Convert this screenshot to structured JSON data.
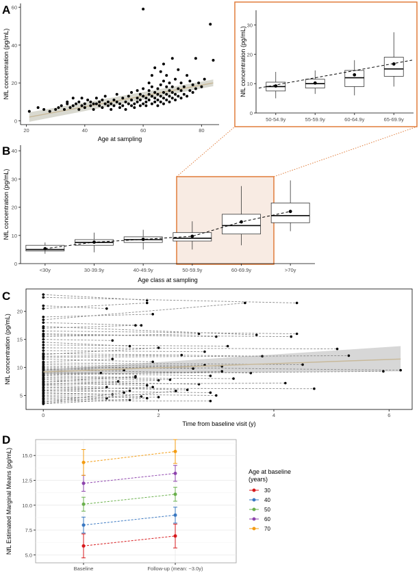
{
  "chart_data": [
    {
      "id": "A",
      "panel_label": "A",
      "type": "scatter",
      "xlabel": "Age at sampling",
      "ylabel": "NfL concentration (pg/mL)",
      "xlim": [
        18,
        86
      ],
      "ylim": [
        -2,
        62
      ],
      "xticks": [
        20,
        40,
        60,
        80
      ],
      "yticks": [
        0,
        20,
        40,
        60
      ],
      "grid": false,
      "points": [
        [
          21,
          5
        ],
        [
          24,
          7
        ],
        [
          26,
          6
        ],
        [
          28,
          5
        ],
        [
          30,
          6
        ],
        [
          31,
          7
        ],
        [
          32,
          8
        ],
        [
          33,
          6
        ],
        [
          34,
          10
        ],
        [
          34,
          9
        ],
        [
          35,
          7
        ],
        [
          36,
          8
        ],
        [
          36,
          12
        ],
        [
          37,
          9
        ],
        [
          38,
          10
        ],
        [
          38,
          6
        ],
        [
          39,
          8
        ],
        [
          39,
          12
        ],
        [
          40,
          7
        ],
        [
          40,
          9
        ],
        [
          41,
          11
        ],
        [
          42,
          8
        ],
        [
          42,
          10
        ],
        [
          43,
          6
        ],
        [
          43,
          9
        ],
        [
          44,
          9
        ],
        [
          44,
          12
        ],
        [
          45,
          8
        ],
        [
          45,
          10
        ],
        [
          46,
          7
        ],
        [
          46,
          11
        ],
        [
          47,
          9
        ],
        [
          47,
          13
        ],
        [
          48,
          8
        ],
        [
          48,
          10
        ],
        [
          49,
          6
        ],
        [
          49,
          9
        ],
        [
          50,
          11
        ],
        [
          50,
          8
        ],
        [
          51,
          10
        ],
        [
          51,
          14
        ],
        [
          52,
          7
        ],
        [
          52,
          9
        ],
        [
          53,
          12
        ],
        [
          53,
          8
        ],
        [
          54,
          10
        ],
        [
          54,
          6
        ],
        [
          55,
          9
        ],
        [
          55,
          13
        ],
        [
          56,
          8
        ],
        [
          56,
          11
        ],
        [
          56,
          15
        ],
        [
          57,
          9
        ],
        [
          57,
          7
        ],
        [
          58,
          10
        ],
        [
          58,
          12
        ],
        [
          58,
          16
        ],
        [
          59,
          8
        ],
        [
          59,
          11
        ],
        [
          59,
          14
        ],
        [
          60,
          9
        ],
        [
          60,
          13
        ],
        [
          60,
          17
        ],
        [
          60,
          59
        ],
        [
          61,
          10
        ],
        [
          61,
          12
        ],
        [
          61,
          8
        ],
        [
          62,
          14
        ],
        [
          62,
          11
        ],
        [
          62,
          16
        ],
        [
          62,
          20
        ],
        [
          63,
          9
        ],
        [
          63,
          13
        ],
        [
          63,
          18
        ],
        [
          63,
          24
        ],
        [
          64,
          10
        ],
        [
          64,
          15
        ],
        [
          64,
          12
        ],
        [
          64,
          28
        ],
        [
          65,
          8
        ],
        [
          65,
          11
        ],
        [
          65,
          14
        ],
        [
          65,
          17
        ],
        [
          66,
          13
        ],
        [
          66,
          19
        ],
        [
          66,
          10
        ],
        [
          66,
          26
        ],
        [
          67,
          9
        ],
        [
          67,
          12
        ],
        [
          67,
          15
        ],
        [
          67,
          21
        ],
        [
          67,
          30
        ],
        [
          68,
          11
        ],
        [
          68,
          14
        ],
        [
          68,
          18
        ],
        [
          68,
          24
        ],
        [
          69,
          10
        ],
        [
          69,
          13
        ],
        [
          69,
          16
        ],
        [
          69,
          20
        ],
        [
          70,
          12
        ],
        [
          70,
          15
        ],
        [
          70,
          18
        ],
        [
          70,
          33
        ],
        [
          71,
          11
        ],
        [
          71,
          14
        ],
        [
          71,
          22
        ],
        [
          72,
          13
        ],
        [
          72,
          17
        ],
        [
          72,
          27
        ],
        [
          73,
          12
        ],
        [
          73,
          16
        ],
        [
          73,
          20
        ],
        [
          74,
          14
        ],
        [
          74,
          18
        ],
        [
          75,
          13
        ],
        [
          75,
          24
        ],
        [
          76,
          16
        ],
        [
          76,
          21
        ],
        [
          77,
          15
        ],
        [
          77,
          19
        ],
        [
          78,
          17
        ],
        [
          78,
          33
        ],
        [
          79,
          20
        ],
        [
          80,
          18
        ],
        [
          81,
          22
        ],
        [
          83,
          51
        ],
        [
          84,
          32
        ]
      ],
      "fit_line": {
        "x": [
          21,
          84
        ],
        "y": [
          2,
          20
        ]
      },
      "ci_lower": [
        -0.5,
        18.3
      ],
      "ci_upper": [
        4.5,
        21.8
      ]
    },
    {
      "id": "A_inset",
      "type": "box",
      "categories": [
        "50-54.9y",
        "55-59.9y",
        "60-64.9y",
        "65-69.9y"
      ],
      "ylabel": "NfL concentration (pg/mL)",
      "ylim": [
        0,
        35
      ],
      "yticks": [
        0,
        10,
        20,
        30
      ],
      "boxes": [
        {
          "min": 5,
          "q1": 7.5,
          "median": 9,
          "q3": 10.5,
          "max": 14,
          "mean": 9.2
        },
        {
          "min": 6.5,
          "q1": 8.5,
          "median": 10,
          "q3": 11.5,
          "max": 14.5,
          "mean": 10.2
        },
        {
          "min": 6,
          "q1": 9,
          "median": 12,
          "q3": 14.5,
          "max": 18,
          "mean": 13
        },
        {
          "min": 9,
          "q1": 12.5,
          "median": 15,
          "q3": 19,
          "max": 27.5,
          "mean": 16.7
        }
      ]
    },
    {
      "id": "B",
      "panel_label": "B",
      "type": "box",
      "xlabel": "Age class at sampling",
      "ylabel": "NfL concentration (pg/mL)",
      "categories": [
        "<30y",
        "30-39.9y",
        "40-49.9y",
        "50-59.9y",
        "60-69.9y",
        ">70y"
      ],
      "ylim": [
        0,
        42
      ],
      "yticks": [
        0,
        10,
        20,
        30,
        40
      ],
      "boxes": [
        {
          "min": 3.5,
          "q1": 4.5,
          "median": 5,
          "q3": 6.5,
          "max": 7.5,
          "mean": 5.3
        },
        {
          "min": 4,
          "q1": 6.5,
          "median": 7.5,
          "q3": 8.5,
          "max": 11,
          "mean": 7.6
        },
        {
          "min": 5,
          "q1": 7.5,
          "median": 8.5,
          "q3": 9.5,
          "max": 12,
          "mean": 8.6
        },
        {
          "min": 5,
          "q1": 8,
          "median": 9,
          "q3": 11,
          "max": 15,
          "mean": 9.7
        },
        {
          "min": 6.5,
          "q1": 10.5,
          "median": 13.5,
          "q3": 17.5,
          "max": 27.5,
          "mean": 14.8
        },
        {
          "min": 11.5,
          "q1": 14.5,
          "median": 17,
          "q3": 21.5,
          "max": 29.5,
          "mean": 18.5
        }
      ]
    },
    {
      "id": "C",
      "panel_label": "C",
      "type": "line",
      "xlabel": "Time from baseline visit (y)",
      "ylabel": "NfL concentration (pg/mL)",
      "xlim": [
        -0.3,
        6.4
      ],
      "ylim": [
        2.5,
        24
      ],
      "xticks": [
        0,
        2,
        4,
        6
      ],
      "yticks": [
        5,
        10,
        15,
        20
      ],
      "pairs": [
        [
          23,
          1.8,
          22
        ],
        [
          22.5,
          4.4,
          21.5
        ],
        [
          21,
          1.1,
          20.5
        ],
        [
          20.5,
          1.8,
          21.5
        ],
        [
          19,
          1.9,
          19.5
        ],
        [
          18.5,
          3.5,
          21.5
        ],
        [
          18,
          1.7,
          17.5
        ],
        [
          17,
          1.6,
          17.5
        ],
        [
          16.5,
          4.4,
          16
        ],
        [
          16,
          3,
          15.5
        ],
        [
          15.5,
          2.7,
          16
        ],
        [
          15,
          1.2,
          14.8
        ],
        [
          14,
          3.2,
          13.8
        ],
        [
          13.5,
          5.1,
          13.3
        ],
        [
          13,
          2.8,
          12.8
        ],
        [
          12.5,
          3.8,
          12
        ],
        [
          12,
          2.4,
          12.2
        ],
        [
          11.5,
          1.9,
          11
        ],
        [
          11,
          1.2,
          11.5
        ],
        [
          10.8,
          4.5,
          10.5
        ],
        [
          10.5,
          3.1,
          10.2
        ],
        [
          10.2,
          6.2,
          9.5
        ],
        [
          10,
          2.6,
          9.8
        ],
        [
          9.8,
          1.4,
          9.5
        ],
        [
          9.5,
          3.6,
          9
        ],
        [
          9.2,
          1,
          9
        ],
        [
          9,
          2.9,
          8.5
        ],
        [
          8.8,
          5.9,
          9.3
        ],
        [
          8.5,
          1.6,
          8.2
        ],
        [
          8.2,
          3.3,
          8
        ],
        [
          8,
          2.2,
          7.8
        ],
        [
          7.8,
          1.3,
          7.5
        ],
        [
          7.5,
          2.7,
          7
        ],
        [
          7.2,
          1.8,
          6.8
        ],
        [
          7,
          4.2,
          7.2
        ],
        [
          6.8,
          1.1,
          6.5
        ],
        [
          6.5,
          2.5,
          6
        ],
        [
          6.3,
          4.7,
          6.2
        ],
        [
          6,
          1.5,
          5.8
        ],
        [
          5.8,
          2.9,
          5.5
        ],
        [
          5.5,
          1.2,
          5.2
        ],
        [
          5.3,
          3,
          5
        ],
        [
          5,
          1.7,
          4.8
        ],
        [
          4.8,
          1.1,
          4.5
        ],
        [
          4.5,
          2,
          4.7
        ],
        [
          4.3,
          1.5,
          4.2
        ],
        [
          4,
          2.9,
          4
        ],
        [
          3.8,
          1.4,
          5.5
        ],
        [
          3.6,
          2.3,
          5.8
        ],
        [
          3.5,
          1.8,
          4.5
        ],
        [
          12.3,
          2,
          13.5
        ],
        [
          17.3,
          3.7,
          15.8
        ],
        [
          14.5,
          1.5,
          13.8
        ],
        [
          11.8,
          5.3,
          12.1
        ],
        [
          9.6,
          2.8,
          10.4
        ],
        [
          8.6,
          3.1,
          9.3
        ],
        [
          6.9,
          2,
          7.7
        ],
        [
          5.9,
          1.9,
          6.5
        ],
        [
          15.8,
          4.3,
          15.5
        ],
        [
          7.4,
          1.6,
          8.4
        ]
      ],
      "fit_line": {
        "x": [
          0,
          6.2
        ],
        "y": [
          9.2,
          11.5
        ]
      },
      "ci_lower": [
        8.8,
        9.3
      ],
      "ci_upper": [
        9.6,
        13.8
      ]
    },
    {
      "id": "D",
      "panel_label": "D",
      "type": "line",
      "categories": [
        "Baseline",
        "Follow-up (mean: ~3.0y)"
      ],
      "ylabel": "NfL Estimated Marginal Means (pg/mL)",
      "ylim": [
        4.2,
        16.6
      ],
      "yticks": [
        5.0,
        7.5,
        10.0,
        12.5,
        15.0
      ],
      "yticklabels": [
        "5.0",
        "7.5",
        "10.0",
        "12.5",
        "15.0"
      ],
      "legend_title": "Age at baseline\n(years)",
      "legend_position": "right",
      "series": [
        {
          "name": "30",
          "values": [
            5.9,
            6.9
          ],
          "lower": [
            4.7,
            5.7
          ],
          "upper": [
            7.1,
            8.1
          ],
          "color": "#d7191c"
        },
        {
          "name": "40",
          "values": [
            8.0,
            9.0
          ],
          "lower": [
            7.2,
            8.2
          ],
          "upper": [
            8.8,
            9.8
          ],
          "color": "#3a78c2"
        },
        {
          "name": "50",
          "values": [
            10.1,
            11.1
          ],
          "lower": [
            9.4,
            10.4
          ],
          "upper": [
            10.8,
            11.8
          ],
          "color": "#6ab04c"
        },
        {
          "name": "60",
          "values": [
            12.2,
            13.2
          ],
          "lower": [
            11.4,
            12.4
          ],
          "upper": [
            13.0,
            14.0
          ],
          "color": "#8e44ad"
        },
        {
          "name": "70",
          "values": [
            14.3,
            15.4
          ],
          "lower": [
            13.0,
            14.2
          ],
          "upper": [
            15.6,
            16.6
          ],
          "color": "#f39c12"
        }
      ]
    }
  ]
}
